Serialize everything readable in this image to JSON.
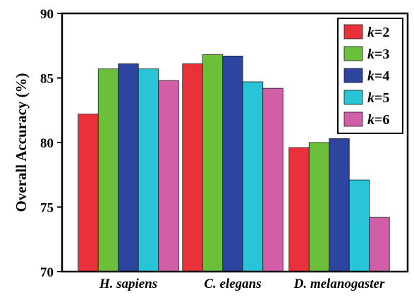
{
  "chart_data": {
    "type": "bar",
    "title": "",
    "xlabel": "",
    "ylabel": "Overall Accuracy (%)",
    "ylim": [
      70,
      90
    ],
    "yticks": [
      70,
      75,
      80,
      85,
      90
    ],
    "grid": false,
    "legend_position": "top-right",
    "categories": [
      "H. sapiens",
      "C. elegans",
      "D. melanogaster"
    ],
    "series": [
      {
        "name": "k=2",
        "legend_var": "k",
        "legend_val": "=2",
        "color": "#e8313a",
        "values": [
          82.2,
          86.1,
          79.6
        ]
      },
      {
        "name": "k=3",
        "legend_var": "k",
        "legend_val": "=3",
        "color": "#6cbf3b",
        "values": [
          85.7,
          86.8,
          80.0
        ]
      },
      {
        "name": "k=4",
        "legend_var": "k",
        "legend_val": "=4",
        "color": "#2e45a0",
        "values": [
          86.1,
          86.7,
          80.3
        ]
      },
      {
        "name": "k=5",
        "legend_var": "k",
        "legend_val": "=5",
        "color": "#29c4d8",
        "values": [
          85.7,
          84.7,
          77.1
        ]
      },
      {
        "name": "k=6",
        "legend_var": "k",
        "legend_val": "=6",
        "color": "#d15fa8",
        "values": [
          84.8,
          84.2,
          74.2
        ]
      }
    ]
  }
}
